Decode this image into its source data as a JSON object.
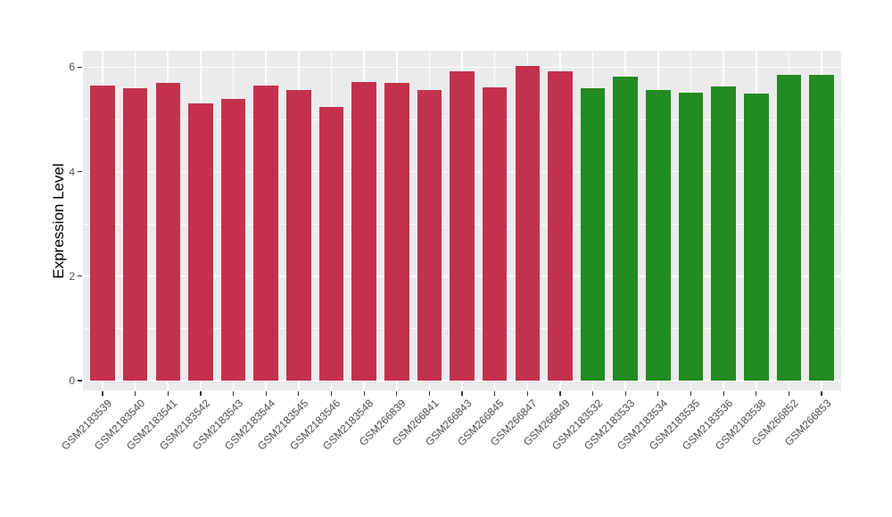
{
  "chart_data": {
    "type": "bar",
    "title": "",
    "xlabel": "",
    "ylabel": "Expression Level",
    "ylim": [
      -0.19,
      6.31
    ],
    "yticks": [
      0,
      2,
      4,
      6
    ],
    "yticklabels": [
      "0",
      "2",
      "4",
      "6"
    ],
    "yticks_minor": [
      1,
      3,
      5
    ],
    "grid": "on",
    "legend": "none",
    "panel_bg_color": "#EBEBEB",
    "grid_color": "#FFFFFF",
    "tick_color": "#333333",
    "axis_text_color": "#4D4D4D",
    "group_colors": {
      "group1": "#C4314E",
      "group2": "#228B22"
    },
    "categories": [
      "GSM2183539",
      "GSM2183540",
      "GSM2183541",
      "GSM2183542",
      "GSM2183543",
      "GSM2183544",
      "GSM2183545",
      "GSM2183546",
      "GSM2183548",
      "GSM266839",
      "GSM266841",
      "GSM266843",
      "GSM266845",
      "GSM266847",
      "GSM266849",
      "GSM2183532",
      "GSM2183533",
      "GSM2183534",
      "GSM2183535",
      "GSM2183536",
      "GSM2183538",
      "GSM266852",
      "GSM266853"
    ],
    "values": [
      5.64,
      5.6,
      5.7,
      5.31,
      5.4,
      5.64,
      5.56,
      5.24,
      5.71,
      5.7,
      5.57,
      5.93,
      5.61,
      6.03,
      5.93,
      5.59,
      5.82,
      5.57,
      5.52,
      5.63,
      5.5,
      5.86,
      5.85
    ],
    "bar_colors": [
      "#C4314E",
      "#C4314E",
      "#C4314E",
      "#C4314E",
      "#C4314E",
      "#C4314E",
      "#C4314E",
      "#C4314E",
      "#C4314E",
      "#C4314E",
      "#C4314E",
      "#C4314E",
      "#C4314E",
      "#C4314E",
      "#C4314E",
      "#228B22",
      "#228B22",
      "#228B22",
      "#228B22",
      "#228B22",
      "#228B22",
      "#228B22",
      "#228B22"
    ]
  }
}
